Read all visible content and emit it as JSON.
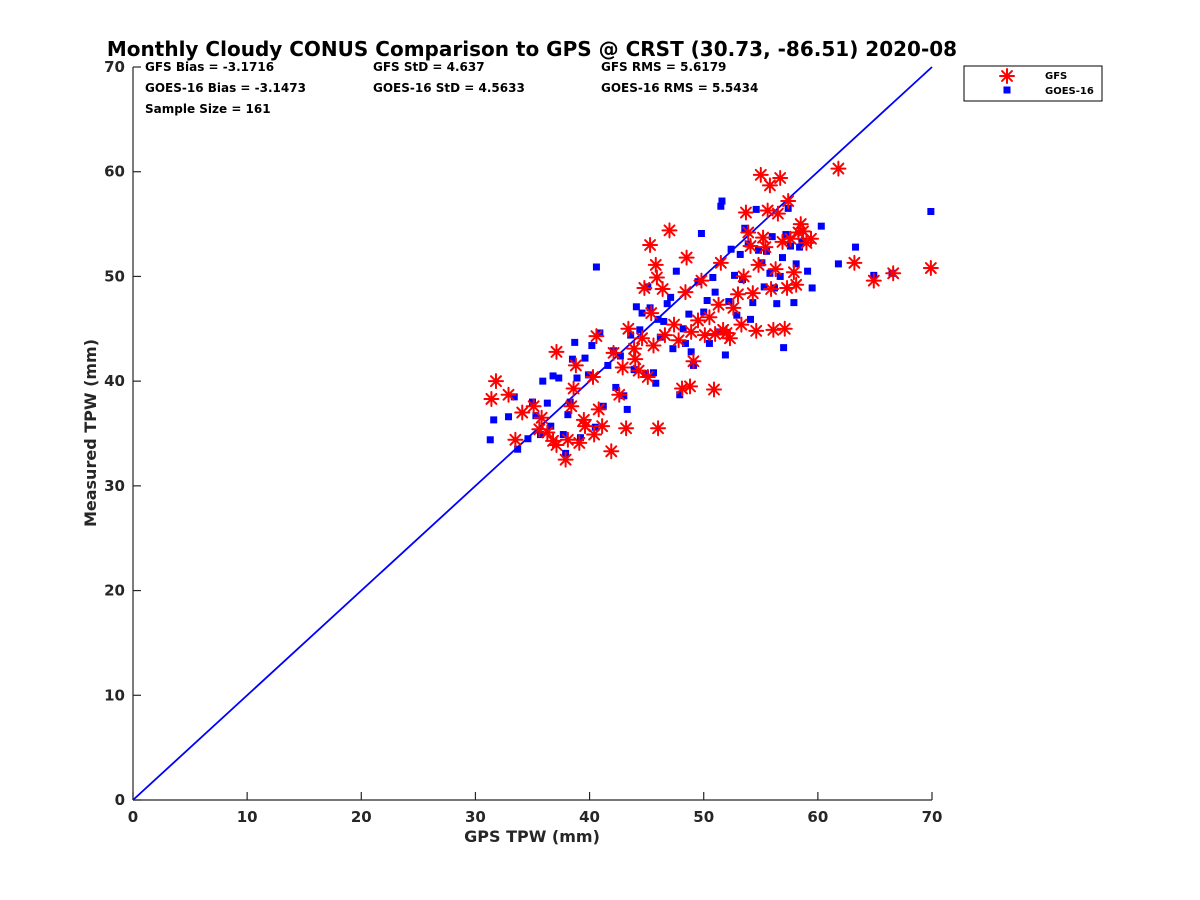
{
  "colors": {
    "gfs": "#ff0000",
    "goes": "#0000ff",
    "line": "#0000ff",
    "axis": "#262626"
  },
  "chart_data": {
    "type": "scatter",
    "title": "Monthly Cloudy CONUS Comparison to GPS @ CRST (30.73, -86.51) 2020-08",
    "xlabel": "GPS TPW (mm)",
    "ylabel": "Measured TPW (mm)",
    "xlim": [
      0,
      70
    ],
    "ylim": [
      0,
      70
    ],
    "xticks": [
      "0",
      "10",
      "20",
      "30",
      "40",
      "50",
      "60",
      "70"
    ],
    "yticks": [
      "0",
      "10",
      "20",
      "30",
      "40",
      "50",
      "60",
      "70"
    ],
    "grid": false,
    "legend_position": "top-right",
    "stats": {
      "gfs_bias": "GFS Bias = -3.1716",
      "gfs_std": "GFS StD = 4.637",
      "gfs_rms": "GFS RMS = 5.6179",
      "goes_bias": "GOES-16 Bias = -3.1473",
      "goes_std": "GOES-16 StD = 4.5633",
      "goes_rms": "GOES-16 RMS = 5.5434",
      "sample_size": "Sample Size = 161"
    },
    "reference_line": {
      "x": [
        0,
        70
      ],
      "y": [
        0,
        70
      ]
    },
    "series": [
      {
        "name": "GFS",
        "marker": "asterisk",
        "points": [
          [
            31.4,
            38.3
          ],
          [
            31.8,
            40
          ],
          [
            32.9,
            38.7
          ],
          [
            33.5,
            34.4
          ],
          [
            34.1,
            37
          ],
          [
            35.1,
            37.6
          ],
          [
            35.6,
            35.4
          ],
          [
            35.8,
            36.5
          ],
          [
            36.3,
            35.1
          ],
          [
            36.8,
            34.3
          ],
          [
            37.1,
            33.9
          ],
          [
            37.1,
            42.8
          ],
          [
            37.9,
            32.5
          ],
          [
            38.1,
            34.4
          ],
          [
            38.4,
            37.6
          ],
          [
            38.6,
            39.3
          ],
          [
            38.8,
            41.5
          ],
          [
            39.1,
            34.1
          ],
          [
            39.5,
            36.3
          ],
          [
            39.6,
            35.7
          ],
          [
            40.3,
            40.4
          ],
          [
            40.4,
            34.9
          ],
          [
            40.6,
            44.3
          ],
          [
            40.8,
            37.3
          ],
          [
            41.1,
            35.7
          ],
          [
            41.9,
            33.3
          ],
          [
            42.1,
            42.7
          ],
          [
            42.6,
            38.7
          ],
          [
            42.9,
            41.3
          ],
          [
            43.2,
            35.5
          ],
          [
            43.4,
            45
          ],
          [
            43.9,
            43.1
          ],
          [
            44,
            42.1
          ],
          [
            44.3,
            41
          ],
          [
            44.6,
            44.1
          ],
          [
            44.8,
            48.9
          ],
          [
            45.1,
            40.4
          ],
          [
            45.4,
            46.5
          ],
          [
            45.6,
            43.4
          ],
          [
            45.3,
            53
          ],
          [
            45.8,
            51.1
          ],
          [
            45.9,
            49.9
          ],
          [
            46,
            35.5
          ],
          [
            46.4,
            48.8
          ],
          [
            46.6,
            44.4
          ],
          [
            47,
            54.4
          ],
          [
            47.4,
            45.4
          ],
          [
            47.8,
            43.9
          ],
          [
            48.1,
            39.3
          ],
          [
            48.4,
            48.5
          ],
          [
            48.5,
            51.8
          ],
          [
            48.8,
            39.5
          ],
          [
            48.9,
            44.7
          ],
          [
            49.1,
            41.9
          ],
          [
            49.5,
            45.8
          ],
          [
            49.8,
            49.6
          ],
          [
            50.1,
            44.4
          ],
          [
            50.5,
            46.1
          ],
          [
            50.9,
            39.2
          ],
          [
            51,
            44.5
          ],
          [
            51.3,
            47.3
          ],
          [
            51.5,
            51.3
          ],
          [
            51.7,
            44.9
          ],
          [
            52,
            44.6
          ],
          [
            52.3,
            44.1
          ],
          [
            52.6,
            47
          ],
          [
            53,
            48.3
          ],
          [
            53.3,
            45.4
          ],
          [
            53.5,
            50
          ],
          [
            53.7,
            56.1
          ],
          [
            53.9,
            54.2
          ],
          [
            54.1,
            52.9
          ],
          [
            54.3,
            48.4
          ],
          [
            54.6,
            44.8
          ],
          [
            54.8,
            51.1
          ],
          [
            55,
            59.7
          ],
          [
            55.2,
            53.7
          ],
          [
            55.4,
            52.8
          ],
          [
            55.6,
            56.3
          ],
          [
            55.8,
            58.7
          ],
          [
            55.9,
            48.8
          ],
          [
            56.1,
            44.9
          ],
          [
            56.3,
            50.7
          ],
          [
            56.5,
            56
          ],
          [
            56.7,
            59.4
          ],
          [
            56.9,
            53.3
          ],
          [
            57.1,
            45
          ],
          [
            57.3,
            48.9
          ],
          [
            57.4,
            57.2
          ],
          [
            57.6,
            53.6
          ],
          [
            57.9,
            50.4
          ],
          [
            58.1,
            49.2
          ],
          [
            58.3,
            54.2
          ],
          [
            58.5,
            55
          ],
          [
            58.7,
            54.3
          ],
          [
            59,
            53.2
          ],
          [
            59.4,
            53.6
          ],
          [
            61.8,
            60.3
          ],
          [
            63.2,
            51.3
          ],
          [
            64.9,
            49.6
          ],
          [
            66.6,
            50.3
          ],
          [
            69.9,
            50.8
          ]
        ]
      },
      {
        "name": "GOES-16",
        "marker": "square",
        "points": [
          [
            31.3,
            34.4
          ],
          [
            31.6,
            36.3
          ],
          [
            32.9,
            36.6
          ],
          [
            33.4,
            38.5
          ],
          [
            33.7,
            33.5
          ],
          [
            34.6,
            34.5
          ],
          [
            35,
            38
          ],
          [
            35.3,
            36.7
          ],
          [
            35.7,
            34.9
          ],
          [
            35.9,
            40
          ],
          [
            36.3,
            37.9
          ],
          [
            36.6,
            35.7
          ],
          [
            36.8,
            40.5
          ],
          [
            37.3,
            40.3
          ],
          [
            37.7,
            34.9
          ],
          [
            37.9,
            33.1
          ],
          [
            38.1,
            36.8
          ],
          [
            38.3,
            38
          ],
          [
            38.5,
            42.1
          ],
          [
            38.7,
            43.7
          ],
          [
            38.9,
            40.3
          ],
          [
            39.2,
            34.6
          ],
          [
            39.6,
            42.2
          ],
          [
            39.9,
            40.6
          ],
          [
            40.2,
            43.4
          ],
          [
            40.5,
            35.6
          ],
          [
            40.6,
            50.9
          ],
          [
            40.9,
            44.6
          ],
          [
            41.2,
            37.6
          ],
          [
            41.6,
            41.5
          ],
          [
            42.1,
            42.9
          ],
          [
            42.3,
            39.4
          ],
          [
            42.7,
            42.4
          ],
          [
            43,
            38.6
          ],
          [
            43.3,
            37.3
          ],
          [
            43.6,
            44.4
          ],
          [
            43.9,
            41.1
          ],
          [
            44.1,
            47.1
          ],
          [
            44.4,
            44.9
          ],
          [
            44.6,
            46.5
          ],
          [
            44.9,
            40.7
          ],
          [
            45.1,
            49
          ],
          [
            45.3,
            47
          ],
          [
            45.6,
            40.8
          ],
          [
            45.8,
            39.8
          ],
          [
            46,
            45.9
          ],
          [
            46.2,
            44.2
          ],
          [
            46.5,
            45.7
          ],
          [
            46.8,
            47.4
          ],
          [
            47.1,
            48
          ],
          [
            47.3,
            43.1
          ],
          [
            47.6,
            50.5
          ],
          [
            47.9,
            38.7
          ],
          [
            48.2,
            45
          ],
          [
            48.4,
            43.6
          ],
          [
            48.7,
            46.4
          ],
          [
            48.9,
            42.8
          ],
          [
            49.1,
            41.5
          ],
          [
            49.5,
            49.5
          ],
          [
            49.8,
            54.1
          ],
          [
            50,
            46.6
          ],
          [
            50.3,
            47.7
          ],
          [
            50.5,
            43.6
          ],
          [
            50.8,
            49.9
          ],
          [
            51,
            48.5
          ],
          [
            51.3,
            44.7
          ],
          [
            51.5,
            56.7
          ],
          [
            51.6,
            57.2
          ],
          [
            51.9,
            42.5
          ],
          [
            52.2,
            47.6
          ],
          [
            52.4,
            52.6
          ],
          [
            52.7,
            50.1
          ],
          [
            52.9,
            46.3
          ],
          [
            53.2,
            52.1
          ],
          [
            53.4,
            49.7
          ],
          [
            53.6,
            54.6
          ],
          [
            53.9,
            53.1
          ],
          [
            54.1,
            45.9
          ],
          [
            54.3,
            47.5
          ],
          [
            54.6,
            56.4
          ],
          [
            54.8,
            52.5
          ],
          [
            55.1,
            51.3
          ],
          [
            55.3,
            49
          ],
          [
            55.5,
            52.4
          ],
          [
            55.8,
            50.3
          ],
          [
            56,
            53.8
          ],
          [
            56.2,
            48.9
          ],
          [
            56.4,
            47.4
          ],
          [
            56.7,
            50
          ],
          [
            56.9,
            51.8
          ],
          [
            57,
            43.2
          ],
          [
            57.2,
            54
          ],
          [
            57.4,
            56.5
          ],
          [
            57.6,
            52.9
          ],
          [
            57.9,
            47.5
          ],
          [
            58.1,
            51.2
          ],
          [
            58.4,
            52.8
          ],
          [
            58.6,
            53.3
          ],
          [
            59.1,
            50.5
          ],
          [
            59.5,
            48.9
          ],
          [
            60.3,
            54.8
          ],
          [
            61.8,
            51.2
          ],
          [
            63.3,
            52.8
          ],
          [
            64.9,
            50.1
          ],
          [
            66.5,
            50.3
          ],
          [
            69.9,
            56.2
          ]
        ]
      }
    ]
  }
}
